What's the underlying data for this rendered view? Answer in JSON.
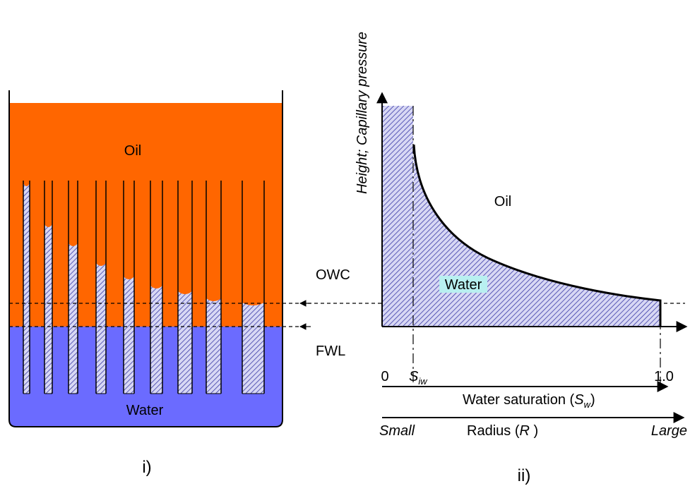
{
  "panel_i": {
    "oil_label": "Oil",
    "water_label": "Water",
    "owc_label": "OWC",
    "fwl_label": "FWL",
    "caption": "i)"
  },
  "panel_ii": {
    "y_axis_label": "Height; Capillary pressure",
    "oil_label": "Oil",
    "water_label": "Water",
    "x_start": "0",
    "s_iw": {
      "main": "S",
      "sub": "iw"
    },
    "x_end": "1.0",
    "saturation_axis": {
      "before": "Water saturation (",
      "main": "S",
      "sub": "w",
      "after": ")"
    },
    "radius_small": "Small",
    "radius_axis": {
      "before": "Radius (",
      "main": "R",
      "after": " )"
    },
    "radius_large": "Large",
    "caption": "ii)"
  }
}
